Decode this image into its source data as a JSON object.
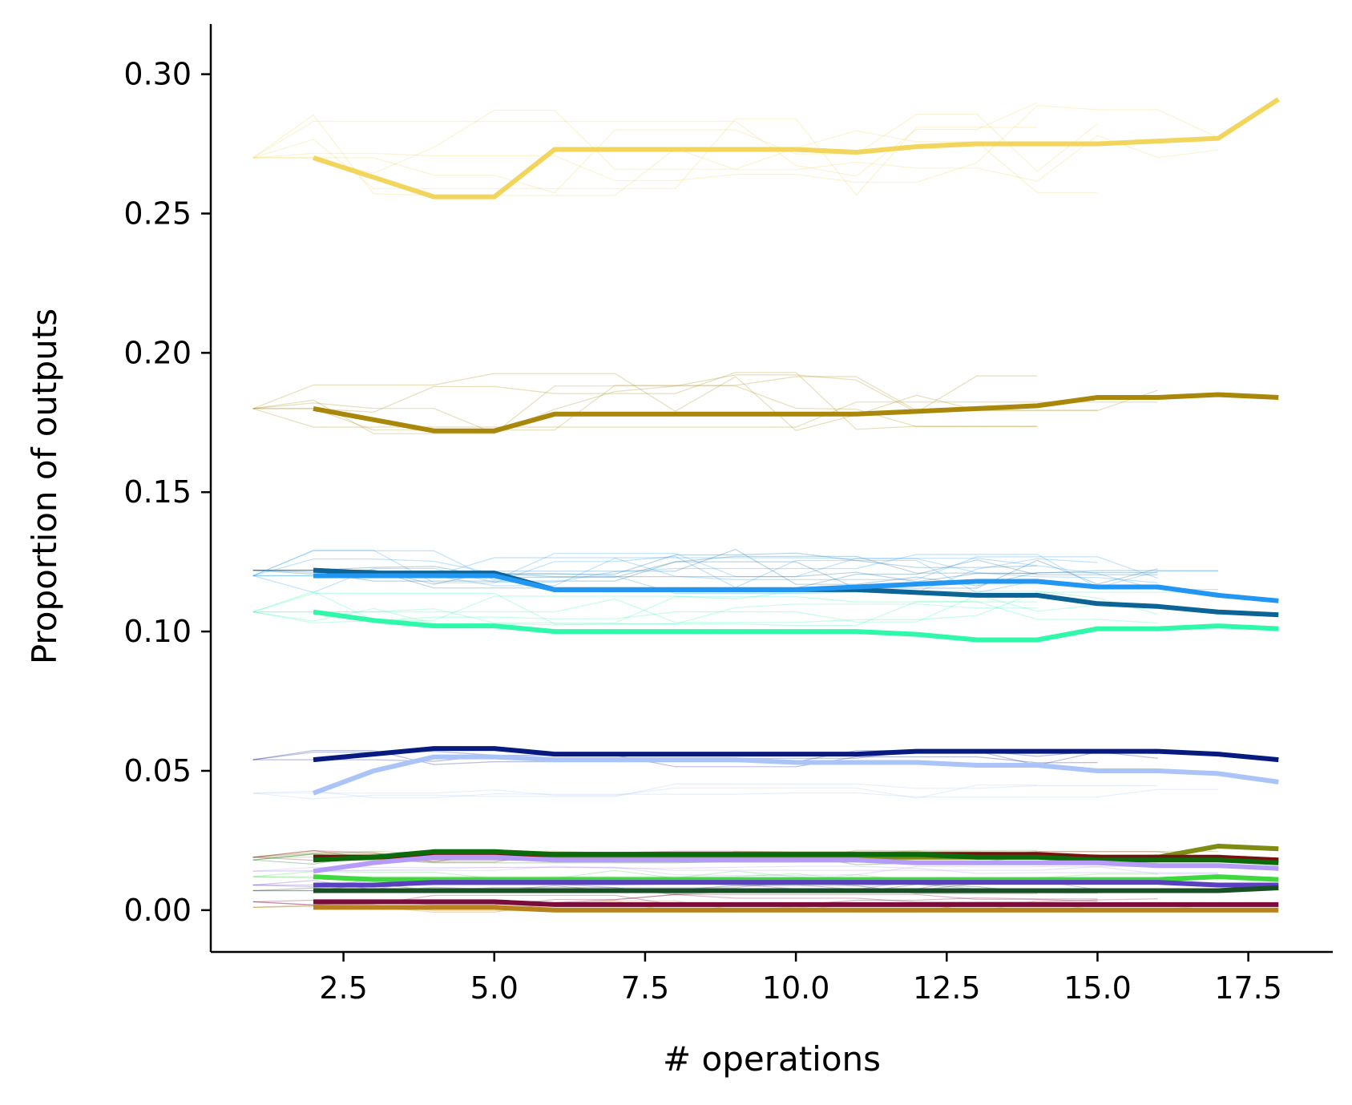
{
  "chart_data": {
    "type": "line",
    "title": "",
    "xlabel": "# operations",
    "ylabel": "Proportion of outputs",
    "xlim": [
      0.3,
      18.9
    ],
    "ylim": [
      -0.015,
      0.318
    ],
    "xticks": [
      2.5,
      5.0,
      7.5,
      10.0,
      12.5,
      15.0,
      17.5
    ],
    "xtick_labels": [
      "2.5",
      "5.0",
      "7.5",
      "10.0",
      "12.5",
      "15.0",
      "17.5"
    ],
    "yticks": [
      0.0,
      0.05,
      0.1,
      0.15,
      0.2,
      0.25,
      0.3
    ],
    "ytick_labels": [
      "0.00",
      "0.05",
      "0.10",
      "0.15",
      "0.20",
      "0.25",
      "0.30"
    ],
    "grid": false,
    "legend": "none",
    "x": [
      2,
      3,
      4,
      5,
      6,
      7,
      8,
      9,
      10,
      11,
      12,
      13,
      14,
      15,
      16,
      17,
      18
    ],
    "series": [
      {
        "color": "#f2d55c",
        "start": 0.27,
        "values": [
          0.27,
          0.263,
          0.256,
          0.256,
          0.273,
          0.273,
          0.273,
          0.273,
          0.273,
          0.272,
          0.274,
          0.275,
          0.275,
          0.275,
          0.276,
          0.277,
          0.291
        ]
      },
      {
        "color": "#a8870a",
        "start": 0.18,
        "values": [
          0.18,
          0.176,
          0.172,
          0.172,
          0.178,
          0.178,
          0.178,
          0.178,
          0.178,
          0.178,
          0.179,
          0.18,
          0.181,
          0.184,
          0.184,
          0.185,
          0.184
        ]
      },
      {
        "color": "#0b6396",
        "start": 0.122,
        "values": [
          0.122,
          0.121,
          0.121,
          0.121,
          0.115,
          0.115,
          0.115,
          0.115,
          0.115,
          0.115,
          0.114,
          0.113,
          0.113,
          0.11,
          0.109,
          0.107,
          0.106
        ]
      },
      {
        "color": "#2196f3",
        "start": 0.12,
        "values": [
          0.12,
          0.12,
          0.12,
          0.12,
          0.115,
          0.115,
          0.115,
          0.115,
          0.115,
          0.116,
          0.117,
          0.118,
          0.118,
          0.116,
          0.116,
          0.113,
          0.111
        ]
      },
      {
        "color": "#2ef8aa",
        "start": 0.107,
        "values": [
          0.107,
          0.104,
          0.102,
          0.102,
          0.1,
          0.1,
          0.1,
          0.1,
          0.1,
          0.1,
          0.099,
          0.097,
          0.097,
          0.101,
          0.101,
          0.102,
          0.101
        ]
      },
      {
        "color": "#071a80",
        "start": 0.054,
        "values": [
          0.054,
          0.056,
          0.058,
          0.058,
          0.056,
          0.056,
          0.056,
          0.056,
          0.056,
          0.056,
          0.057,
          0.057,
          0.057,
          0.057,
          0.057,
          0.056,
          0.054
        ]
      },
      {
        "color": "#aac4f8",
        "start": 0.042,
        "values": [
          0.042,
          0.05,
          0.055,
          0.055,
          0.054,
          0.054,
          0.054,
          0.054,
          0.053,
          0.053,
          0.053,
          0.052,
          0.052,
          0.05,
          0.05,
          0.049,
          0.046
        ]
      },
      {
        "color": "#7f8b12",
        "start": 0.019,
        "values": [
          0.019,
          0.019,
          0.019,
          0.019,
          0.019,
          0.019,
          0.019,
          0.019,
          0.019,
          0.019,
          0.019,
          0.019,
          0.019,
          0.019,
          0.019,
          0.023,
          0.022
        ]
      },
      {
        "color": "#7a0f10",
        "start": 0.019,
        "values": [
          0.019,
          0.019,
          0.02,
          0.02,
          0.02,
          0.02,
          0.02,
          0.02,
          0.02,
          0.02,
          0.02,
          0.02,
          0.02,
          0.019,
          0.019,
          0.019,
          0.018
        ]
      },
      {
        "color": "#0b6b0b",
        "start": 0.018,
        "values": [
          0.018,
          0.019,
          0.021,
          0.021,
          0.02,
          0.02,
          0.02,
          0.02,
          0.02,
          0.02,
          0.02,
          0.019,
          0.019,
          0.018,
          0.018,
          0.018,
          0.017
        ]
      },
      {
        "color": "#b59cf8",
        "start": 0.014,
        "values": [
          0.014,
          0.017,
          0.019,
          0.019,
          0.018,
          0.018,
          0.018,
          0.018,
          0.018,
          0.018,
          0.017,
          0.017,
          0.017,
          0.017,
          0.016,
          0.016,
          0.015
        ]
      },
      {
        "color": "#3fd83f",
        "start": 0.012,
        "values": [
          0.012,
          0.011,
          0.011,
          0.011,
          0.011,
          0.011,
          0.011,
          0.011,
          0.011,
          0.011,
          0.011,
          0.011,
          0.011,
          0.011,
          0.011,
          0.012,
          0.011
        ]
      },
      {
        "color": "#5b3fc1",
        "start": 0.009,
        "values": [
          0.009,
          0.009,
          0.01,
          0.01,
          0.01,
          0.01,
          0.01,
          0.01,
          0.01,
          0.01,
          0.01,
          0.01,
          0.01,
          0.01,
          0.01,
          0.009,
          0.009
        ]
      },
      {
        "color": "#184f25",
        "start": 0.007,
        "values": [
          0.007,
          0.007,
          0.007,
          0.007,
          0.007,
          0.007,
          0.007,
          0.007,
          0.007,
          0.007,
          0.007,
          0.007,
          0.007,
          0.007,
          0.007,
          0.007,
          0.008
        ]
      },
      {
        "color": "#7a0b3b",
        "start": 0.003,
        "values": [
          0.003,
          0.003,
          0.003,
          0.003,
          0.002,
          0.002,
          0.002,
          0.002,
          0.002,
          0.002,
          0.002,
          0.002,
          0.002,
          0.002,
          0.002,
          0.002,
          0.002
        ]
      },
      {
        "color": "#b8821c",
        "start": 0.001,
        "values": [
          0.001,
          0.001,
          0.001,
          0.001,
          0.0,
          0.0,
          0.0,
          0.0,
          0.0,
          0.0,
          0.0,
          0.0,
          0.0,
          0.0,
          0.0,
          0.0,
          0.0
        ]
      }
    ]
  }
}
